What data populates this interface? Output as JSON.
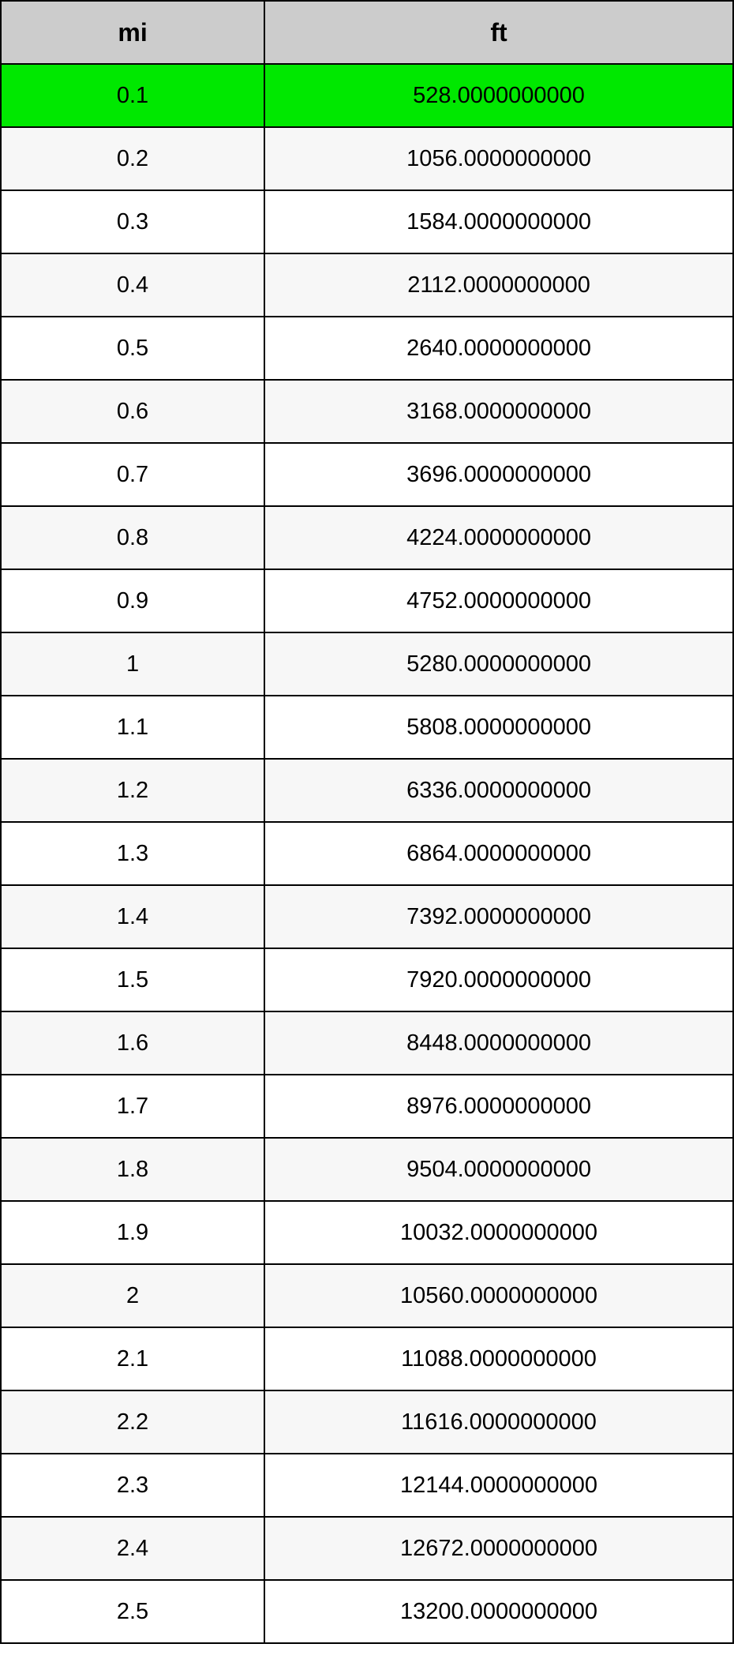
{
  "table": {
    "type": "table",
    "header_bg": "#cccccc",
    "highlight_bg": "#00e800",
    "stripe_bg": "#f7f7f7",
    "border_color": "#000000",
    "font_family": "Arial",
    "header_fontsize": 32,
    "cell_fontsize": 29,
    "columns": [
      "mi",
      "ft"
    ],
    "column_widths": [
      "36%",
      "64%"
    ],
    "highlighted_row_index": 0,
    "rows": [
      [
        "0.1",
        "528.0000000000"
      ],
      [
        "0.2",
        "1056.0000000000"
      ],
      [
        "0.3",
        "1584.0000000000"
      ],
      [
        "0.4",
        "2112.0000000000"
      ],
      [
        "0.5",
        "2640.0000000000"
      ],
      [
        "0.6",
        "3168.0000000000"
      ],
      [
        "0.7",
        "3696.0000000000"
      ],
      [
        "0.8",
        "4224.0000000000"
      ],
      [
        "0.9",
        "4752.0000000000"
      ],
      [
        "1",
        "5280.0000000000"
      ],
      [
        "1.1",
        "5808.0000000000"
      ],
      [
        "1.2",
        "6336.0000000000"
      ],
      [
        "1.3",
        "6864.0000000000"
      ],
      [
        "1.4",
        "7392.0000000000"
      ],
      [
        "1.5",
        "7920.0000000000"
      ],
      [
        "1.6",
        "8448.0000000000"
      ],
      [
        "1.7",
        "8976.0000000000"
      ],
      [
        "1.8",
        "9504.0000000000"
      ],
      [
        "1.9",
        "10032.0000000000"
      ],
      [
        "2",
        "10560.0000000000"
      ],
      [
        "2.1",
        "11088.0000000000"
      ],
      [
        "2.2",
        "11616.0000000000"
      ],
      [
        "2.3",
        "12144.0000000000"
      ],
      [
        "2.4",
        "12672.0000000000"
      ],
      [
        "2.5",
        "13200.0000000000"
      ]
    ]
  }
}
